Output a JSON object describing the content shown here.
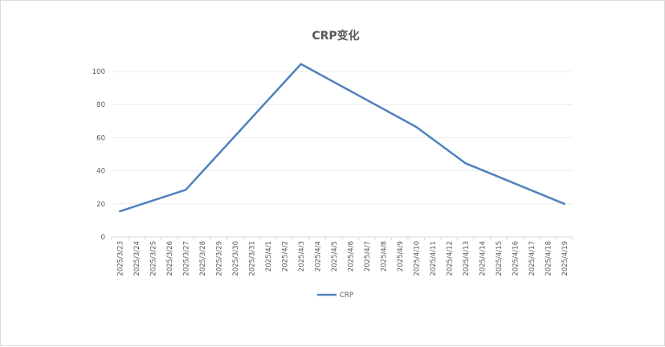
{
  "chart_data": {
    "type": "line",
    "title": "CRP变化",
    "xlabel": "",
    "ylabel": "",
    "categories": [
      "2025/3/23",
      "2025/3/24",
      "2025/3/25",
      "2025/3/26",
      "2025/3/27",
      "2025/3/28",
      "2025/3/29",
      "2025/3/30",
      "2025/3/31",
      "2025/4/1",
      "2025/4/2",
      "2025/4/3",
      "2025/4/4",
      "2025/4/5",
      "2025/4/6",
      "2025/4/7",
      "2025/4/8",
      "2025/4/9",
      "2025/4/10",
      "2025/4/11",
      "2025/4/12",
      "2025/4/13",
      "2025/4/14",
      "2025/4/15",
      "2025/4/16",
      "2025/4/17",
      "2025/4/18",
      "2025/4/19"
    ],
    "series": [
      {
        "name": "CRP",
        "color": "#4f81bd",
        "points": [
          {
            "x": "2025/3/23",
            "y": 15.5
          },
          {
            "x": "2025/3/27",
            "y": 28.5
          },
          {
            "x": "2025/4/3",
            "y": 104.5
          },
          {
            "x": "2025/4/10",
            "y": 66.5
          },
          {
            "x": "2025/4/13",
            "y": 44.5
          },
          {
            "x": "2025/4/19",
            "y": 20
          }
        ]
      }
    ],
    "ylim": [
      0,
      100
    ],
    "yticks": [
      0,
      20,
      40,
      60,
      80,
      100
    ],
    "grid": true,
    "legend": "bottom"
  }
}
